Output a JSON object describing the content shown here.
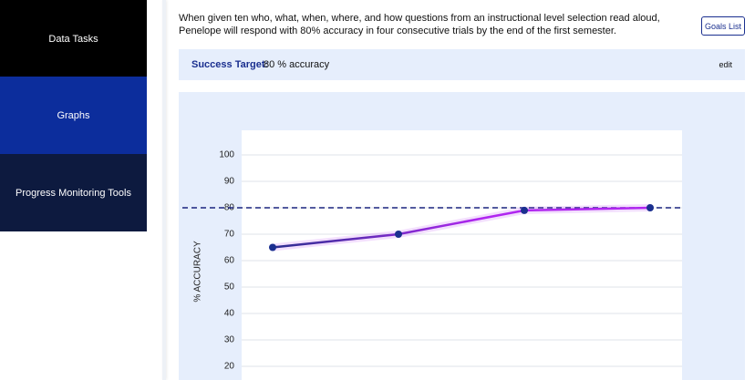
{
  "sidebar": {
    "items": [
      "Data Tasks",
      "Graphs",
      "Progress Monitoring Tools"
    ]
  },
  "goal": {
    "text": "When given ten who, what, when, where, and how questions from an instructional level selection read aloud, Penelope will respond with 80% accuracy in four consecutive trials by the end of the first semester.",
    "button": "Goals List"
  },
  "success": {
    "label": "Success Target:",
    "value": "80 % accuracy",
    "edit": "edit"
  },
  "chart_data": {
    "type": "line",
    "y_label": "% ACCURACY",
    "categories": [
      null,
      null,
      null,
      null
    ],
    "series": [
      {
        "color": "#b026f0",
        "marker_color": "#1a2f8f",
        "values": [
          65,
          70,
          79,
          80
        ]
      }
    ],
    "target": 80,
    "target_color": "#1a237e",
    "ylim": [
      20,
      100
    ],
    "yticks": [
      20,
      30,
      40,
      50,
      60,
      70,
      80,
      90,
      100
    ],
    "grid": true
  }
}
